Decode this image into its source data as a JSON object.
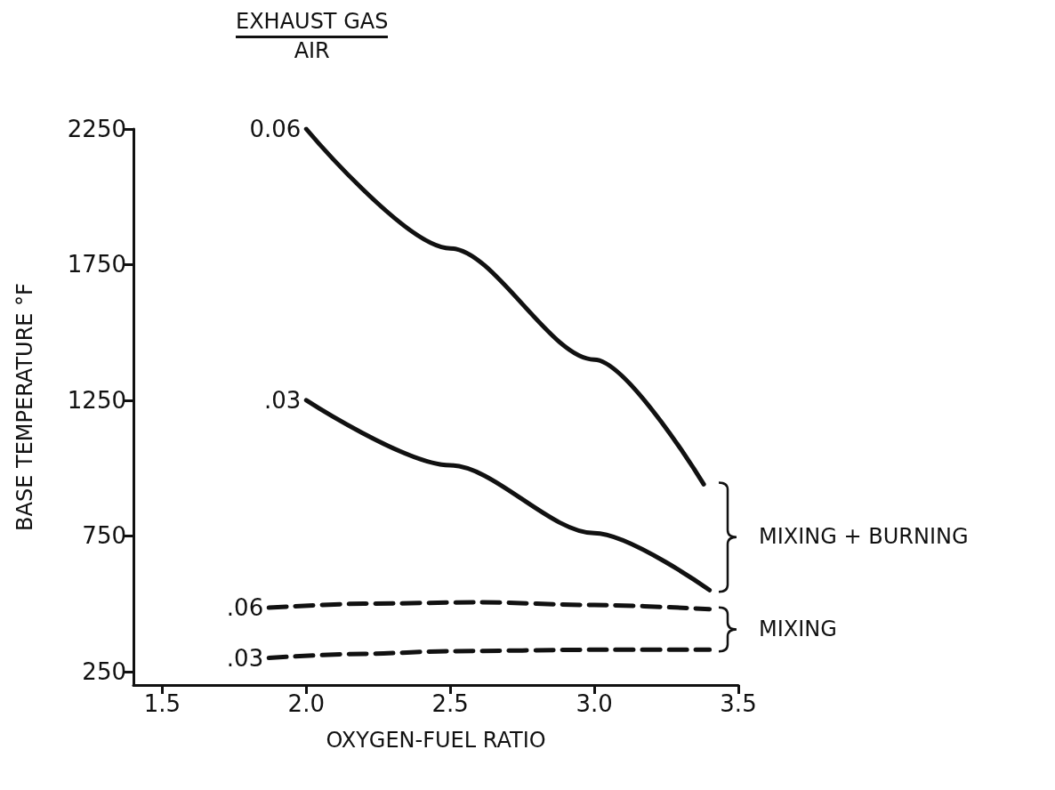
{
  "chart_data": {
    "type": "line",
    "legend_title": "EXHAUST GAS\nAIR",
    "xlabel": "OXYGEN-FUEL RATIO",
    "ylabel": "BASE TEMPERATURE °F",
    "series": [
      {
        "name": "0.06",
        "color": "#111111",
        "line_style": "solid",
        "x": [
          2.0,
          2.5,
          3.0,
          3.38
        ],
        "values": [
          2250,
          1810,
          1400,
          940
        ]
      },
      {
        "name": ".03",
        "color": "#111111",
        "line_style": "solid",
        "x": [
          2.0,
          2.5,
          3.0,
          3.4
        ],
        "values": [
          1250,
          1010,
          760,
          550
        ]
      },
      {
        "name": ".06",
        "color": "#111111",
        "line_style": "dashed",
        "x": [
          1.87,
          2.2,
          2.6,
          3.0,
          3.4
        ],
        "values": [
          485,
          500,
          505,
          495,
          480
        ]
      },
      {
        "name": ".03",
        "color": "#111111",
        "line_style": "dashed",
        "x": [
          1.87,
          2.2,
          2.5,
          3.0,
          3.4
        ],
        "values": [
          300,
          315,
          325,
          330,
          330
        ]
      }
    ],
    "annotations": [
      "MIXING + BURNING",
      "MIXING"
    ],
    "xlim": [
      1.4,
      3.5
    ],
    "xticks": [
      1.5,
      {
        "value": 2,
        "label": "2.0"
      },
      2.5,
      {
        "value": 3,
        "label": "3.0"
      },
      3.5
    ],
    "ylim": [
      200,
      2250
    ],
    "yticks": [
      250,
      750,
      1250,
      1750,
      2250
    ],
    "grid": false,
    "legend": false,
    "marker": "none"
  }
}
